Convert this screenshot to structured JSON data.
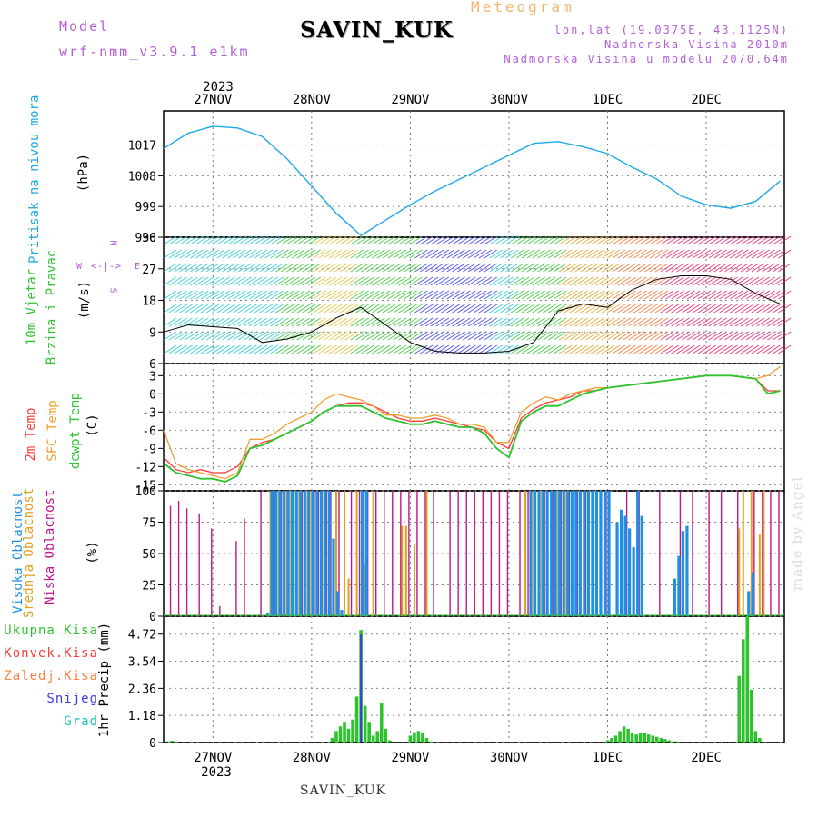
{
  "header": {
    "meteogram": "Meteogram",
    "station": "SAVIN_KUK",
    "model_label": "Model",
    "model_value": "wrf-nmm_v3.9.1 e1km",
    "lonlat": "lon,lat (19.0375E, 43.1125N)",
    "elevation": "Nadmorska Visina 2010m",
    "model_elevation": "Nadmorska Visina u modelu 2070.64m",
    "watermark": "made by Angel"
  },
  "footer": {
    "station": "SAVIN_KUK"
  },
  "time_axis": {
    "year": "2023",
    "days": [
      "27NOV",
      "28NOV",
      "29NOV",
      "30NOV",
      "1DEC",
      "2DEC"
    ]
  },
  "colors": {
    "pressure": "#1da9e6",
    "temp_2m": "#ff3b3b",
    "temp_sfc": "#f0a030",
    "dewpoint": "#2ec32e",
    "cloud_high": "#1e90e6",
    "cloud_mid": "#e0a020",
    "cloud_low": "#c0168a",
    "precip_total": "#2ec32e",
    "precip_snow": "#3a3ae6",
    "precip_convective": "#ff3b3b",
    "precip_freezing": "#ff8040",
    "precip_hail": "#20c0c0"
  },
  "panels": {
    "pressure": {
      "label": "Pritisak na nivou mora",
      "unit": "(hPa)",
      "ticks": [
        "1017",
        "1008",
        "999",
        "990"
      ]
    },
    "wind": {
      "label_line1": "10m Vjetar",
      "label_line2": "Brzina i Pravac",
      "unit": "(m/s)",
      "ticks": [
        "36",
        "27",
        "18",
        "9",
        "6"
      ],
      "compass_w": "W",
      "compass_e": "E",
      "compass_n": "N",
      "compass_s": "S"
    },
    "temperature": {
      "label_2m": "2m Temp",
      "label_sfc": "SFC Temp",
      "label_dew": "dewpt Temp",
      "unit": "(C)",
      "ticks": [
        "3",
        "0",
        "-3",
        "-6",
        "-9",
        "-12",
        "-15"
      ]
    },
    "clouds": {
      "label_high": "Visoka Oblacnost",
      "label_mid": "Srednja Oblacnost",
      "label_low": "Niska Oblacnost",
      "unit": "(%)",
      "ticks": [
        "100",
        "75",
        "50",
        "25",
        "0"
      ]
    },
    "precip": {
      "legend_total": "Ukupna Kisa",
      "legend_convective": "Konvek.Kisa",
      "legend_freezing": "Zaledj.Kisa",
      "legend_snow": "Snijeg",
      "legend_hail": "Grad",
      "axis_label": "1hr Precip (mm)",
      "ticks": [
        "4.72",
        "3.54",
        "2.36",
        "1.18",
        "0"
      ]
    }
  },
  "chart_data": [
    {
      "type": "line",
      "panel": "pressure",
      "ylabel": "(hPa)",
      "ylim": [
        990,
        1027
      ],
      "x_unit": "hours since 26NOV 12UTC",
      "series": [
        {
          "x": [
            0,
            6,
            12,
            18,
            24,
            30,
            36,
            42,
            48,
            54,
            60,
            66,
            72,
            78,
            84,
            90,
            96,
            102,
            108,
            114,
            120,
            126,
            132,
            138,
            144,
            150
          ],
          "values": [
            1016,
            1020.5,
            1022.5,
            1022,
            1019.5,
            1013,
            1005,
            997,
            990.5,
            995,
            999.5,
            1003.5,
            1007,
            1010.5,
            1014,
            1017.5,
            1018,
            1016.5,
            1014.5,
            1010.5,
            1007,
            1002,
            999.5,
            998.5,
            1000.5,
            1006.5
          ]
        }
      ]
    },
    {
      "type": "line",
      "panel": "wind",
      "ylabel": "(m/s)",
      "ylim": [
        0,
        36
      ],
      "x_unit": "hours since 26NOV 12UTC",
      "series": [
        {
          "x": [
            0,
            6,
            12,
            18,
            24,
            30,
            36,
            42,
            48,
            54,
            60,
            66,
            72,
            78,
            84,
            90,
            96,
            102,
            108,
            114,
            120,
            126,
            132,
            138,
            144,
            150
          ],
          "values": [
            9,
            11,
            10.5,
            10,
            6,
            7,
            9,
            13,
            16,
            11,
            6,
            3.5,
            3,
            3,
            3.5,
            6,
            15,
            17,
            16,
            21,
            24,
            25,
            25,
            24,
            20,
            17
          ]
        }
      ]
    },
    {
      "type": "line",
      "panel": "temperature",
      "ylabel": "(C)",
      "ylim": [
        -16,
        5
      ],
      "x_unit": "hours since 26NOV 12UTC",
      "series": [
        {
          "name": "2m Temp",
          "x": [
            0,
            3,
            6,
            9,
            12,
            15,
            18,
            21,
            24,
            27,
            30,
            33,
            36,
            39,
            42,
            45,
            48,
            51,
            54,
            57,
            60,
            63,
            66,
            69,
            72,
            75,
            78,
            81,
            84,
            87,
            90,
            93,
            96,
            99,
            102,
            105,
            108,
            114,
            120,
            126,
            132,
            138,
            144,
            147,
            150
          ],
          "values": [
            -10.5,
            -12.5,
            -13,
            -12.5,
            -13,
            -13,
            -12,
            -9,
            -8,
            -7.5,
            -6.5,
            -5.5,
            -4.5,
            -3,
            -2,
            -1.5,
            -1.5,
            -2,
            -3,
            -4,
            -4.5,
            -4.5,
            -4,
            -4.5,
            -5,
            -5.5,
            -6,
            -8,
            -9,
            -4,
            -2.5,
            -1.5,
            -1,
            -0.5,
            0.5,
            0.5,
            1,
            1.5,
            2,
            2.5,
            3,
            3,
            2.5,
            0.5,
            0.5
          ]
        },
        {
          "name": "SFC Temp",
          "x": [
            0,
            3,
            6,
            9,
            12,
            15,
            18,
            21,
            24,
            27,
            30,
            33,
            36,
            39,
            42,
            45,
            48,
            51,
            54,
            57,
            60,
            63,
            66,
            69,
            72,
            75,
            78,
            81,
            84,
            87,
            90,
            93,
            96,
            99,
            102,
            105,
            108,
            114,
            120,
            126,
            132,
            138,
            144,
            147,
            150
          ],
          "values": [
            -6,
            -11.5,
            -12.5,
            -13,
            -13.5,
            -14,
            -13,
            -7.5,
            -7.5,
            -6.5,
            -5,
            -4,
            -3,
            -1,
            0,
            -0.5,
            -1,
            -2,
            -3.5,
            -3.5,
            -4,
            -4,
            -3.5,
            -4,
            -5,
            -5,
            -5.5,
            -8,
            -8,
            -3,
            -1.5,
            -0.5,
            -1,
            0,
            0.5,
            1,
            1,
            1.5,
            2,
            2.5,
            3,
            3,
            2.5,
            3,
            4.5
          ]
        },
        {
          "name": "dewpt Temp",
          "x": [
            0,
            3,
            6,
            9,
            12,
            15,
            18,
            21,
            24,
            27,
            30,
            33,
            36,
            39,
            42,
            45,
            48,
            51,
            54,
            57,
            60,
            63,
            66,
            69,
            72,
            75,
            78,
            81,
            84,
            87,
            90,
            93,
            96,
            99,
            102,
            105,
            108,
            114,
            120,
            126,
            132,
            138,
            144,
            147,
            150
          ],
          "values": [
            -11.5,
            -13,
            -13.5,
            -14,
            -14,
            -14.5,
            -13.5,
            -9,
            -8.5,
            -7.5,
            -6.5,
            -5.5,
            -4.5,
            -3,
            -2,
            -2,
            -2,
            -3,
            -4,
            -4.5,
            -5,
            -5,
            -4.5,
            -5,
            -5.5,
            -5.5,
            -6.5,
            -9,
            -10.5,
            -4.5,
            -3,
            -2,
            -2,
            -1,
            0,
            0.5,
            1,
            1.5,
            2,
            2.5,
            3,
            3,
            2.5,
            0,
            0.5
          ]
        }
      ]
    },
    {
      "type": "bar",
      "panel": "clouds",
      "ylabel": "(%)",
      "ylim": [
        0,
        100
      ],
      "x_unit": "hours since 26NOV 12UTC",
      "series": [
        {
          "name": "Niska Oblacnost",
          "x": [
            2,
            4,
            6,
            9,
            12,
            14,
            18,
            20,
            24,
            27,
            29,
            34,
            37,
            38,
            40,
            41,
            43,
            46,
            48,
            50,
            52,
            54,
            56,
            58,
            60,
            62,
            64,
            66,
            70,
            72,
            74,
            76,
            78,
            80,
            82,
            84,
            87,
            89,
            93,
            95,
            97,
            99,
            101,
            103,
            108,
            113,
            116,
            121,
            126,
            129,
            133,
            136,
            140,
            144,
            146,
            148,
            150
          ],
          "values": [
            88,
            92,
            86,
            82,
            70,
            8,
            60,
            78,
            100,
            100,
            100,
            100,
            100,
            100,
            100,
            100,
            100,
            100,
            100,
            100,
            100,
            100,
            100,
            100,
            100,
            100,
            100,
            100,
            100,
            100,
            100,
            100,
            100,
            100,
            100,
            100,
            100,
            100,
            100,
            100,
            100,
            100,
            100,
            100,
            100,
            100,
            100,
            100,
            100,
            100,
            100,
            100,
            100,
            100,
            100,
            100,
            100
          ]
        },
        {
          "name": "Srednja Oblacnost",
          "x": [
            26,
            28,
            30,
            31,
            33,
            35,
            36,
            39,
            42,
            44,
            45,
            47,
            49,
            51,
            58,
            59,
            61,
            64,
            88,
            90,
            92,
            96,
            98,
            140,
            141,
            143,
            145,
            146
          ],
          "values": [
            100,
            100,
            100,
            100,
            100,
            100,
            100,
            100,
            100,
            100,
            30,
            100,
            42,
            100,
            72,
            72,
            58,
            100,
            100,
            100,
            100,
            100,
            100,
            70,
            100,
            100,
            65,
            100
          ]
        },
        {
          "name": "Visoka Oblacnost",
          "x": [
            25,
            26,
            27,
            28,
            29,
            30,
            31,
            32,
            33,
            34,
            35,
            36,
            37,
            38,
            39,
            40,
            41,
            42,
            43,
            48,
            49,
            89,
            90,
            91,
            92,
            93,
            94,
            95,
            96,
            97,
            98,
            99,
            100,
            101,
            102,
            103,
            104,
            105,
            106,
            107,
            108,
            110,
            111,
            112,
            113,
            114,
            115,
            116,
            124,
            125,
            126,
            127,
            142,
            143
          ],
          "values": [
            3,
            100,
            100,
            100,
            100,
            100,
            100,
            100,
            100,
            100,
            100,
            100,
            100,
            100,
            100,
            100,
            62,
            20,
            5,
            100,
            100,
            100,
            100,
            100,
            100,
            100,
            100,
            100,
            100,
            100,
            100,
            100,
            100,
            100,
            100,
            100,
            100,
            100,
            100,
            100,
            100,
            75,
            85,
            80,
            70,
            55,
            100,
            80,
            30,
            48,
            68,
            72,
            20,
            35
          ]
        }
      ]
    },
    {
      "type": "bar",
      "panel": "precip",
      "ylabel": "1hr Precip (mm)",
      "ylim": [
        0,
        5.5
      ],
      "x_unit": "hours since 26NOV 12UTC",
      "series": [
        {
          "name": "Ukupna Kisa",
          "x": [
            1,
            2,
            3,
            41,
            42,
            43,
            44,
            45,
            46,
            47,
            48,
            49,
            50,
            51,
            52,
            53,
            54,
            55,
            60,
            61,
            62,
            63,
            64,
            65,
            108,
            109,
            110,
            111,
            112,
            113,
            114,
            115,
            116,
            117,
            118,
            119,
            120,
            121,
            122,
            123,
            124,
            125,
            140,
            141,
            142,
            143,
            144,
            145
          ],
          "values": [
            0.05,
            0.08,
            0.05,
            0.2,
            0.5,
            0.7,
            0.9,
            0.6,
            1.0,
            2.0,
            4.9,
            1.6,
            0.9,
            0.3,
            0.5,
            1.7,
            0.6,
            0.1,
            0.3,
            0.45,
            0.5,
            0.4,
            0.2,
            0.05,
            0.1,
            0.2,
            0.3,
            0.5,
            0.7,
            0.6,
            0.4,
            0.35,
            0.4,
            0.4,
            0.35,
            0.3,
            0.25,
            0.2,
            0.15,
            0.1,
            0.05,
            0.05,
            2.9,
            4.5,
            5.5,
            2.3,
            0.5,
            0.2
          ]
        },
        {
          "name": "Snijeg",
          "x": [
            48
          ],
          "values": [
            4.7
          ]
        }
      ]
    }
  ]
}
